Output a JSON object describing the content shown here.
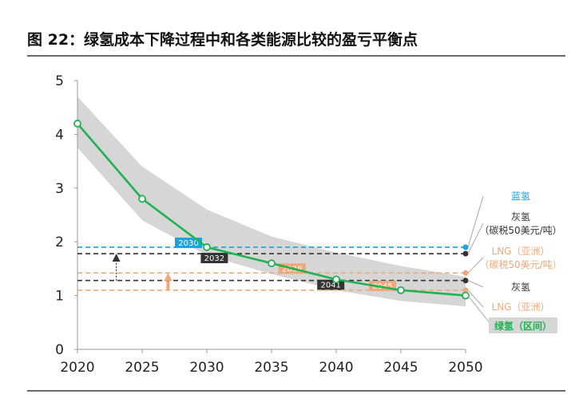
{
  "title": "图 22：绿氢成本下降过程中和各类能源比较的盈亏平衡点",
  "chart_data": {
    "type": "line",
    "title": "图 22：绿氢成本下降过程中和各类能源比较的盈亏平衡点",
    "xlabel": "",
    "ylabel": "",
    "xlim": [
      2020,
      2050
    ],
    "ylim": [
      0,
      5
    ],
    "x_ticks": [
      2020,
      2025,
      2030,
      2035,
      2040,
      2045,
      2050
    ],
    "y_ticks": [
      0,
      1,
      2,
      3,
      4,
      5
    ],
    "grid": false,
    "series": [
      {
        "name": "绿氢（区间）",
        "kind": "line",
        "color": "#1db352",
        "x": [
          2020,
          2025,
          2030,
          2035,
          2040,
          2045,
          2050
        ],
        "values": [
          4.2,
          2.8,
          1.9,
          1.6,
          1.3,
          1.1,
          1.0
        ]
      },
      {
        "name": "绿氢（区间）",
        "kind": "band",
        "color": "#d6d6d6",
        "x": [
          2020,
          2025,
          2030,
          2035,
          2040,
          2045,
          2050
        ],
        "upper": [
          4.7,
          3.4,
          2.6,
          2.1,
          1.8,
          1.55,
          1.35
        ],
        "lower": [
          3.75,
          2.4,
          1.75,
          1.4,
          1.1,
          0.9,
          0.8
        ]
      }
    ],
    "reference_lines": [
      {
        "name": "蓝氢",
        "value": 1.9,
        "color": "#1aa3e0",
        "crossing_year": "2030",
        "text_color": "#1aa3e0"
      },
      {
        "name": "灰氢\n（碳税50美元/吨）",
        "value": 1.78,
        "color": "#333333",
        "crossing_year": "2032",
        "text_color": "#333333"
      },
      {
        "name": "LNG（亚洲）\n（碳税50美元/吨）",
        "value": 1.42,
        "color": "#f0a878",
        "crossing_year": "2038",
        "text_color": "#f0a878"
      },
      {
        "name": "灰氢",
        "value": 1.28,
        "color": "#333333",
        "crossing_year": "2041",
        "text_color": "#333333"
      },
      {
        "name": "LNG（亚洲）",
        "value": 1.1,
        "color": "#f0a878",
        "crossing_year": "2045",
        "text_color": "#f0a878"
      }
    ],
    "annotations": [
      {
        "type": "arrow",
        "x": 2023,
        "from": 1.28,
        "to": 1.78,
        "color": "#333333"
      },
      {
        "type": "arrow",
        "x": 2027,
        "from": 1.1,
        "to": 1.42,
        "color": "#f0a878"
      }
    ]
  }
}
